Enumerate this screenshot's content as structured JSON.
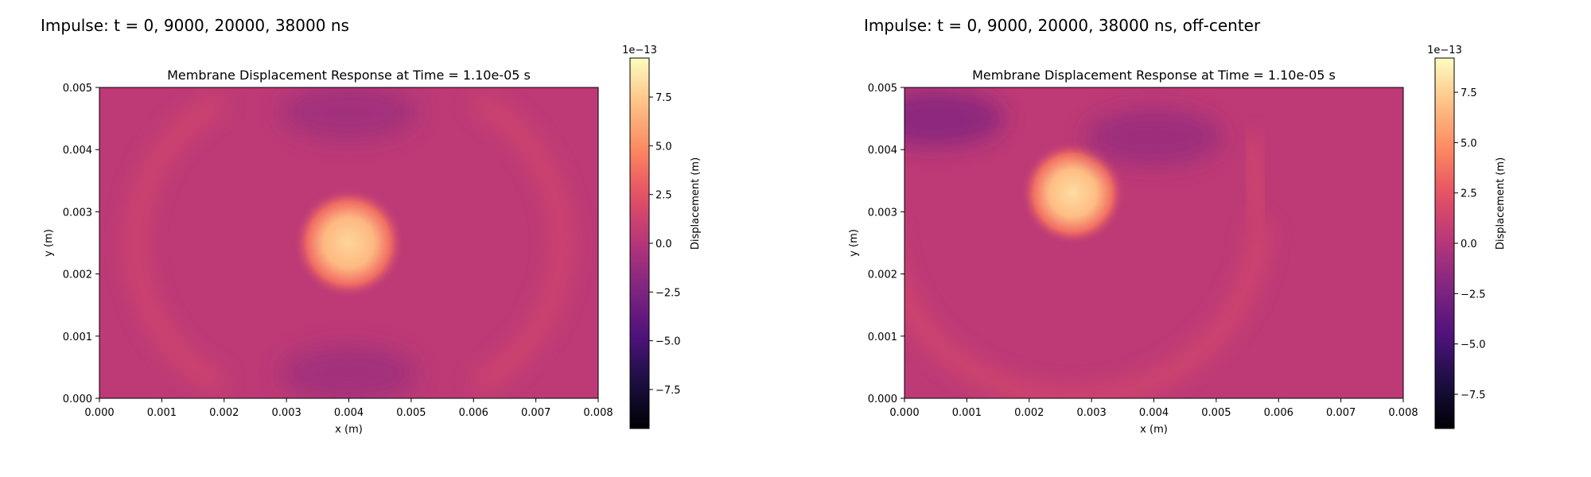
{
  "figure": {
    "panel_titles": [
      "Impulse: t = 0, 9000, 20000, 38000 ns",
      "Impulse: t = 0, 9000, 20000, 38000 ns, off-center"
    ]
  },
  "chart_data": [
    {
      "type": "heatmap",
      "title": "Membrane Displacement Response at Time = 1.10e-05 s",
      "xlabel": "x (m)",
      "ylabel": "y (m)",
      "xlim": [
        0,
        0.008
      ],
      "ylim": [
        0,
        0.005
      ],
      "x_ticks": [
        "0.000",
        "0.001",
        "0.002",
        "0.003",
        "0.004",
        "0.005",
        "0.006",
        "0.007",
        "0.008"
      ],
      "y_ticks": [
        "0.000",
        "0.001",
        "0.002",
        "0.003",
        "0.004",
        "0.005"
      ],
      "colorbar": {
        "label": "Displacement (m)",
        "offset_text": "1e−13",
        "range": [
          -9.5,
          9.5
        ],
        "ticks": [
          "−7.5",
          "−5.0",
          "−2.5",
          "0.0",
          "2.5",
          "5.0",
          "7.5"
        ],
        "colormap": "magma"
      },
      "background_value": 0.4,
      "features": [
        {
          "kind": "peak",
          "center": [
            0.004,
            0.0025
          ],
          "radius": 0.00085,
          "value": 8.0
        },
        {
          "kind": "ring_arc",
          "center": [
            0.004,
            0.0025
          ],
          "radius": 0.0024,
          "value": 2.5,
          "side": "left-right"
        },
        {
          "kind": "trough",
          "center": [
            0.004,
            0.0046
          ],
          "value": -1.2
        },
        {
          "kind": "trough",
          "center": [
            0.004,
            0.0004
          ],
          "value": -1.2
        }
      ]
    },
    {
      "type": "heatmap",
      "title": "Membrane Displacement Response at Time = 1.10e-05 s",
      "xlabel": "x (m)",
      "ylabel": "y (m)",
      "xlim": [
        0,
        0.008
      ],
      "ylim": [
        0,
        0.005
      ],
      "x_ticks": [
        "0.000",
        "0.001",
        "0.002",
        "0.003",
        "0.004",
        "0.005",
        "0.006",
        "0.007",
        "0.008"
      ],
      "y_ticks": [
        "0.000",
        "0.001",
        "0.002",
        "0.003",
        "0.004",
        "0.005"
      ],
      "colorbar": {
        "label": "Displacement (m)",
        "offset_text": "1e−13",
        "range": [
          -9.2,
          9.2
        ],
        "ticks": [
          "−7.5",
          "−5.0",
          "−2.5",
          "0.0",
          "2.5",
          "5.0",
          "7.5"
        ],
        "colormap": "magma"
      },
      "background_value": 0.4,
      "features": [
        {
          "kind": "peak",
          "center": [
            0.0027,
            0.0033
          ],
          "radius": 0.0008,
          "value": 8.0
        },
        {
          "kind": "ring_arc",
          "center": [
            0.0027,
            0.0033
          ],
          "radius": 0.003,
          "value": 2.5,
          "side": "lower"
        },
        {
          "kind": "trough",
          "center": [
            0.0005,
            0.0045
          ],
          "value": -2.5
        },
        {
          "kind": "trough",
          "center": [
            0.004,
            0.0042
          ],
          "value": -1.5
        }
      ]
    }
  ]
}
